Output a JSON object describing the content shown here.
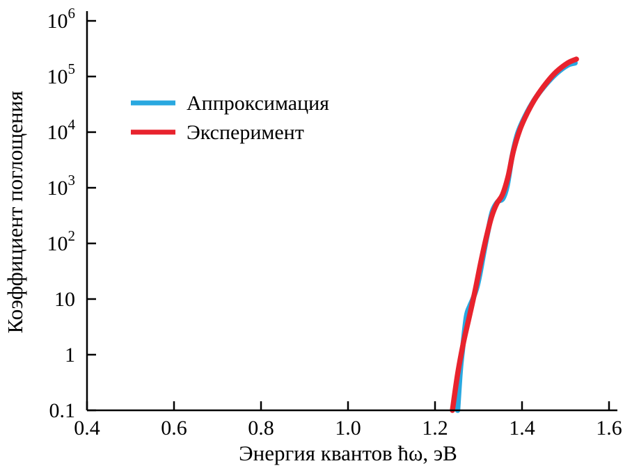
{
  "chart_data": {
    "type": "line",
    "title": "",
    "xlabel": "Энергия квантов ħω, эВ",
    "ylabel": "Коэффициент поглощения",
    "grid": false,
    "legend_position": "upper-left",
    "x_axis": {
      "min": 0.4,
      "max": 1.6,
      "scale": "linear",
      "ticks": [
        0.4,
        0.6,
        0.8,
        1.0,
        1.2,
        1.4,
        1.6
      ],
      "tick_labels": [
        "0.4",
        "0.6",
        "0.8",
        "1.0",
        "1.2",
        "1.4",
        "1.6"
      ]
    },
    "y_axis": {
      "min": 0.1,
      "max": 1000000,
      "scale": "log",
      "ticks": [
        0.1,
        1,
        10,
        100,
        1000,
        10000,
        100000,
        1000000
      ],
      "tick_labels": [
        "0.1",
        "1",
        "10",
        "10^2",
        "10^3",
        "10^4",
        "10^5",
        "10^6"
      ]
    },
    "series": [
      {
        "name": "Аппроксимация",
        "color": "#29a8e0",
        "width": 7.5,
        "points": [
          [
            1.252,
            0.1
          ],
          [
            1.258,
            0.5
          ],
          [
            1.263,
            1.2
          ],
          [
            1.272,
            4.8
          ],
          [
            1.28,
            7.5
          ],
          [
            1.287,
            10
          ],
          [
            1.296,
            16
          ],
          [
            1.303,
            28
          ],
          [
            1.313,
            75
          ],
          [
            1.322,
            170
          ],
          [
            1.332,
            380
          ],
          [
            1.344,
            560
          ],
          [
            1.356,
            640
          ],
          [
            1.366,
            1100
          ],
          [
            1.377,
            3600
          ],
          [
            1.39,
            9500
          ],
          [
            1.408,
            20000
          ],
          [
            1.43,
            40000
          ],
          [
            1.455,
            72000
          ],
          [
            1.48,
            115000
          ],
          [
            1.505,
            160000
          ],
          [
            1.522,
            175000
          ]
        ]
      },
      {
        "name": "Эксперимент",
        "color": "#e8232d",
        "width": 7.5,
        "points": [
          [
            1.24,
            0.1
          ],
          [
            1.252,
            0.45
          ],
          [
            1.265,
            1.6
          ],
          [
            1.278,
            4.5
          ],
          [
            1.292,
            14
          ],
          [
            1.305,
            45
          ],
          [
            1.318,
            130
          ],
          [
            1.33,
            300
          ],
          [
            1.342,
            520
          ],
          [
            1.355,
            750
          ],
          [
            1.368,
            1600
          ],
          [
            1.38,
            4500
          ],
          [
            1.395,
            11000
          ],
          [
            1.412,
            22000
          ],
          [
            1.432,
            42000
          ],
          [
            1.455,
            75000
          ],
          [
            1.478,
            120000
          ],
          [
            1.505,
            175000
          ],
          [
            1.525,
            205000
          ]
        ]
      }
    ]
  }
}
